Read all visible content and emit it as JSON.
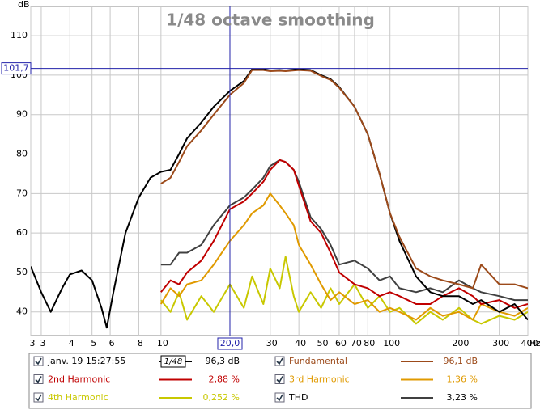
{
  "chart_data": {
    "type": "line",
    "title": "1/48 octave smoothing",
    "y_label": "dB",
    "x_unit": "Hz",
    "xscale": "log",
    "xlim": [
      2.7,
      400
    ],
    "ylim": [
      34,
      117.4
    ],
    "xticks": [
      {
        "value": 2.7,
        "label": "3"
      },
      3,
      4,
      5,
      6,
      8,
      10,
      30,
      40,
      50,
      60,
      70,
      80,
      100,
      200,
      300,
      400
    ],
    "yticks": [
      40,
      50,
      60,
      70,
      80,
      90,
      100,
      110
    ],
    "grid": true,
    "cursor": {
      "x": 20.0,
      "x_label": "20,0",
      "y": 101.7,
      "y_label": "101,7"
    },
    "x": [
      2.7,
      3,
      3.3,
      3.7,
      4,
      4.5,
      5,
      5.5,
      5.8,
      6.2,
      7,
      8,
      9,
      10,
      11,
      12,
      13,
      15,
      17,
      20,
      23,
      25,
      28,
      30,
      33,
      35,
      38,
      40,
      45,
      50,
      55,
      60,
      70,
      80,
      90,
      100,
      110,
      130,
      150,
      170,
      200,
      230,
      250,
      300,
      350,
      400
    ],
    "series": [
      {
        "name": "4th Harmonic",
        "color": "#c8c800",
        "readout": "0,252 %",
        "values": [
          null,
          null,
          null,
          null,
          null,
          null,
          null,
          null,
          null,
          null,
          null,
          null,
          null,
          43,
          40,
          45,
          38,
          44,
          40,
          47,
          41,
          49,
          42,
          51,
          46,
          54,
          44,
          40,
          45,
          41,
          46,
          42,
          47,
          41,
          44,
          40,
          41,
          37,
          40,
          38,
          41,
          38,
          37,
          39,
          38,
          40
        ]
      },
      {
        "name": "3rd Harmonic",
        "color": "#e09a00",
        "readout": "1,36 %",
        "values": [
          null,
          null,
          null,
          null,
          null,
          null,
          null,
          null,
          null,
          null,
          null,
          null,
          null,
          42,
          46,
          44,
          47,
          48,
          52,
          58,
          62,
          65,
          67,
          70,
          67,
          65,
          62,
          57,
          52,
          47,
          43,
          45,
          42,
          43,
          40,
          41,
          40,
          38,
          41,
          39,
          40,
          38,
          42,
          40,
          39,
          41
        ]
      },
      {
        "name": "THD",
        "color": "#404040",
        "readout": "3,23 %",
        "values": [
          null,
          null,
          null,
          null,
          null,
          null,
          null,
          null,
          null,
          null,
          null,
          null,
          null,
          52,
          52,
          55,
          55,
          57,
          62,
          67,
          69,
          71,
          74,
          77,
          78.5,
          78,
          76,
          73,
          64,
          61,
          57,
          52,
          53,
          51,
          48,
          49,
          46,
          45,
          46,
          45,
          48,
          46,
          45,
          44,
          43,
          43
        ]
      },
      {
        "name": "2nd Harmonic",
        "color": "#c00000",
        "readout": "2,88 %",
        "values": [
          null,
          null,
          null,
          null,
          null,
          null,
          null,
          null,
          null,
          null,
          null,
          null,
          null,
          45,
          48,
          47,
          50,
          53,
          58,
          66,
          68,
          70,
          73,
          76,
          78.5,
          78,
          76,
          72,
          63,
          60,
          55,
          50,
          47,
          46,
          44,
          45,
          44,
          42,
          42,
          44,
          46,
          44,
          42,
          43,
          41,
          42
        ]
      },
      {
        "name": "janv. 19 15:27:55",
        "color": "#000000",
        "readout": "96,3 dB",
        "smoothing_badge": "1/48",
        "values": [
          51.5,
          45,
          40,
          46,
          49.5,
          50.5,
          48,
          41,
          36,
          45,
          60,
          69,
          74,
          75.5,
          76,
          80,
          84,
          88,
          92,
          96,
          98.5,
          101.5,
          101.5,
          101.2,
          101.3,
          101.2,
          101.4,
          101.5,
          101.3,
          100,
          99,
          97,
          92,
          85,
          75,
          65,
          58,
          49,
          45,
          44,
          44,
          42,
          43,
          40,
          42,
          38
        ]
      },
      {
        "name": "Fundamental",
        "color": "#9c4a1a",
        "readout": "96,1 dB",
        "values": [
          null,
          null,
          null,
          null,
          null,
          null,
          null,
          null,
          null,
          null,
          null,
          null,
          null,
          72.5,
          74,
          78,
          82,
          86,
          90,
          95,
          98,
          101.3,
          101.3,
          101,
          101.1,
          101,
          101.2,
          101.3,
          101.1,
          99.8,
          98.8,
          96.8,
          92,
          85,
          75,
          65,
          59,
          51,
          49,
          48,
          47,
          46,
          52,
          47,
          47,
          46
        ]
      }
    ],
    "legend_order": [
      4,
      5,
      3,
      1,
      0,
      2
    ]
  }
}
